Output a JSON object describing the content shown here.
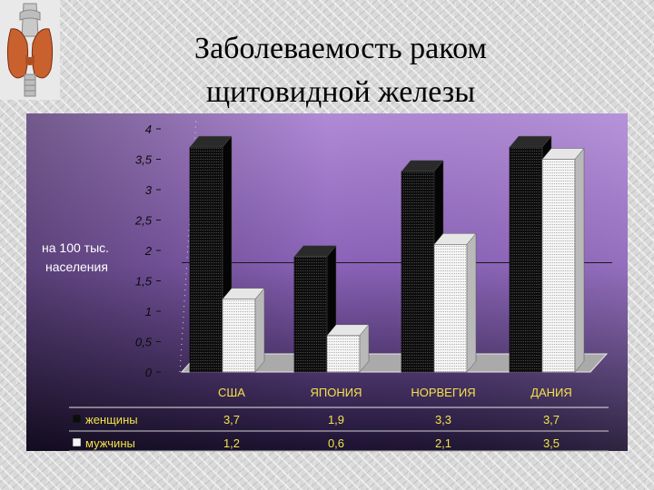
{
  "title_line1": "Заболеваемость раком",
  "title_line2": "щитовидной железы",
  "logo_icon": "thyroid-gland-icon",
  "colors": {
    "panel_top": "#b08ad6",
    "panel_bottom": "#1c1230",
    "text_yellow": "#f2e24a",
    "women_bar": "#0d0d0d",
    "men_bar": "#f5f5f5"
  },
  "chart_data": {
    "type": "bar",
    "categories": [
      "США",
      "ЯПОНИЯ",
      "НОРВЕГИЯ",
      "ДАНИЯ"
    ],
    "series": [
      {
        "name": "женщины",
        "values": [
          3.7,
          1.9,
          3.3,
          3.7
        ],
        "labels": [
          "3,7",
          "1,9",
          "3,3",
          "3,7"
        ]
      },
      {
        "name": "мужчины",
        "values": [
          1.2,
          0.6,
          2.1,
          3.5
        ],
        "labels": [
          "1,2",
          "0,6",
          "2,1",
          "3,5"
        ]
      }
    ],
    "yticks": [
      "0",
      "0,5",
      "1",
      "1,5",
      "2",
      "2,5",
      "3",
      "3,5",
      "4"
    ],
    "ylabel_line1": "на 100 тыс.",
    "ylabel_line2": "населения",
    "ylim": [
      0,
      4
    ],
    "legend_position": "bottom (data table)",
    "grid": false,
    "chart3d": true
  }
}
